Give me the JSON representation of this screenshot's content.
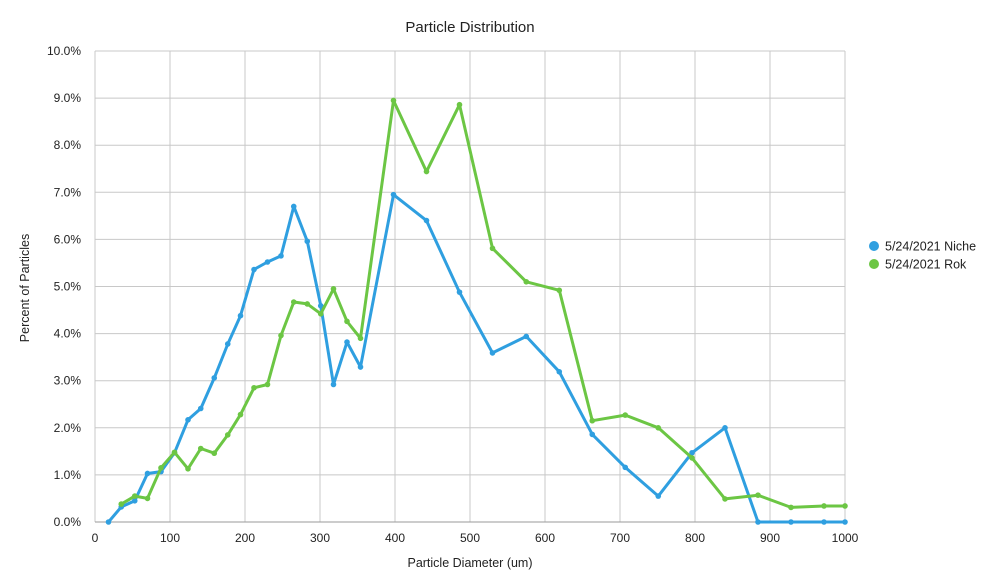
{
  "chart_data": {
    "type": "line",
    "title": "Particle Distribution",
    "xlabel": "Particle Diameter (um)",
    "ylabel": "Percent of Particles",
    "xlim": [
      0,
      1000
    ],
    "ylim": [
      0,
      10
    ],
    "x_ticks": [
      0,
      100,
      200,
      300,
      400,
      500,
      600,
      700,
      800,
      900,
      1000
    ],
    "x_tick_labels": [
      "0",
      "100",
      "200",
      "300",
      "400",
      "500",
      "600",
      "700",
      "800",
      "900",
      "1000"
    ],
    "y_ticks": [
      0,
      1,
      2,
      3,
      4,
      5,
      6,
      7,
      8,
      9,
      10
    ],
    "y_tick_labels": [
      "0.0%",
      "1.0%",
      "2.0%",
      "3.0%",
      "4.0%",
      "5.0%",
      "6.0%",
      "7.0%",
      "8.0%",
      "9.0%",
      "10.0%"
    ],
    "grid": true,
    "legend_position": "right",
    "series": [
      {
        "name": "5/24/2021 Niche",
        "color": "#2f9fe0",
        "x": [
          18,
          35,
          53,
          70,
          88,
          106,
          124,
          141,
          159,
          177,
          194,
          212,
          230,
          248,
          265,
          283,
          301,
          318,
          336,
          354,
          398,
          442,
          486,
          530,
          575,
          619,
          663,
          707,
          751,
          796,
          840,
          884,
          928,
          972,
          1000
        ],
        "y": [
          0.0,
          0.32,
          0.45,
          1.03,
          1.07,
          1.47,
          2.17,
          2.41,
          3.06,
          3.78,
          4.38,
          5.36,
          5.52,
          5.65,
          6.7,
          5.96,
          4.59,
          2.92,
          3.82,
          3.29,
          6.95,
          6.4,
          4.88,
          3.59,
          3.94,
          3.19,
          1.86,
          1.16,
          0.55,
          1.47,
          2.0,
          0.0,
          0.0,
          0.0,
          0.0
        ]
      },
      {
        "name": "5/24/2021 Rok",
        "color": "#6cc644",
        "x": [
          35,
          53,
          70,
          88,
          106,
          124,
          141,
          159,
          177,
          194,
          212,
          230,
          248,
          265,
          283,
          301,
          318,
          336,
          354,
          398,
          442,
          486,
          530,
          575,
          619,
          663,
          707,
          751,
          796,
          840,
          884,
          928,
          972,
          1000
        ],
        "y": [
          0.38,
          0.55,
          0.5,
          1.15,
          1.48,
          1.13,
          1.56,
          1.46,
          1.85,
          2.28,
          2.85,
          2.92,
          3.96,
          4.67,
          4.63,
          4.42,
          4.95,
          4.26,
          3.9,
          8.95,
          7.44,
          8.86,
          5.81,
          5.1,
          4.92,
          2.15,
          2.27,
          2.0,
          1.36,
          0.49,
          0.57,
          0.31,
          0.34,
          0.34
        ]
      }
    ]
  }
}
